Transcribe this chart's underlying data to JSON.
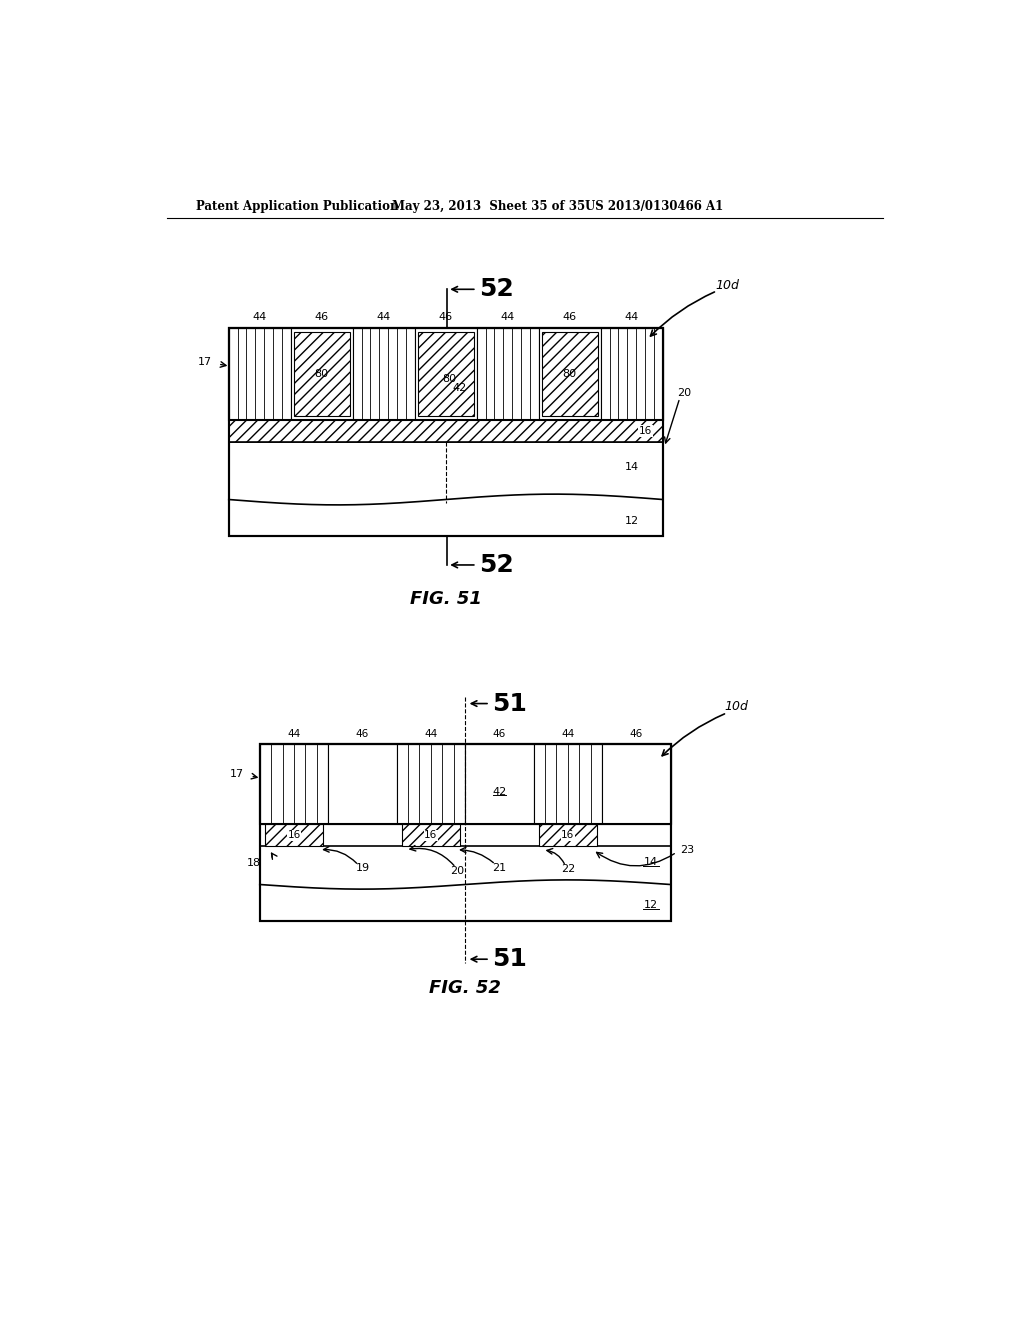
{
  "bg_color": "#ffffff",
  "header_text": "Patent Application Publication",
  "header_date": "May 23, 2013  Sheet 35 of 35",
  "header_patent": "US 2013/0130466 A1"
}
